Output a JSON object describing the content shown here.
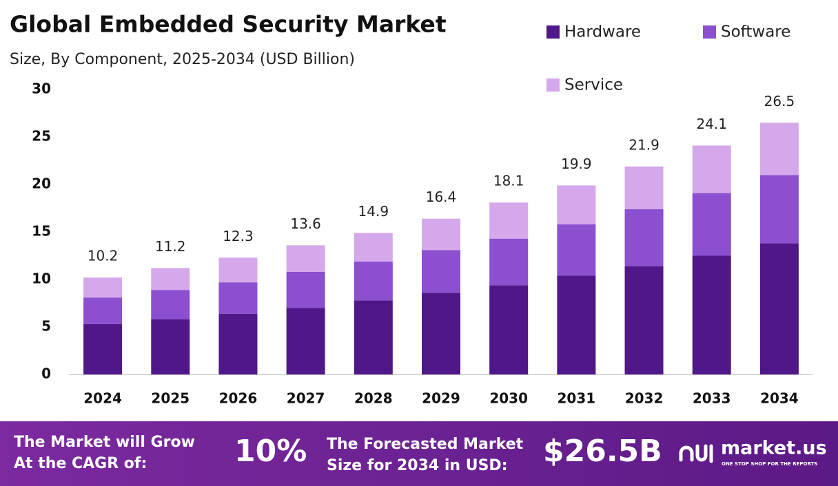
{
  "chart_data": {
    "type": "stacked-bar",
    "title": "Global Embedded Security Market",
    "subtitle": "Size, By Component, 2025-2034 (USD Billion)",
    "categories": [
      "2024",
      "2025",
      "2026",
      "2027",
      "2028",
      "2029",
      "2030",
      "2031",
      "2032",
      "2033",
      "2034"
    ],
    "series": [
      {
        "name": "Hardware",
        "color": "#4f1787",
        "values": [
          5.3,
          5.8,
          6.4,
          7.0,
          7.8,
          8.6,
          9.4,
          10.4,
          11.4,
          12.5,
          13.8
        ]
      },
      {
        "name": "Software",
        "color": "#8b4fcf",
        "values": [
          2.8,
          3.1,
          3.3,
          3.8,
          4.1,
          4.5,
          4.9,
          5.4,
          6.0,
          6.6,
          7.2
        ]
      },
      {
        "name": "Service",
        "color": "#d4a8ea",
        "values": [
          2.1,
          2.3,
          2.6,
          2.8,
          3.0,
          3.3,
          3.8,
          4.1,
          4.5,
          5.0,
          5.5
        ]
      }
    ],
    "totals": [
      10.2,
      11.2,
      12.3,
      13.6,
      14.9,
      16.4,
      18.1,
      19.9,
      21.9,
      24.1,
      26.5
    ],
    "ylim": [
      0,
      30
    ],
    "yticks": [
      0,
      5,
      10,
      15,
      20,
      25,
      30
    ]
  },
  "footer": {
    "cagr_text": [
      "The Market will Grow",
      "At the CAGR of:"
    ],
    "cagr_value": "10%",
    "forecast_text": [
      "The Forecasted Market",
      "Size for 2034 in USD:"
    ],
    "forecast_value": "$26.5B",
    "brand": "market.us",
    "tagline": "ONE STOP SHOP FOR THE REPORTS"
  }
}
